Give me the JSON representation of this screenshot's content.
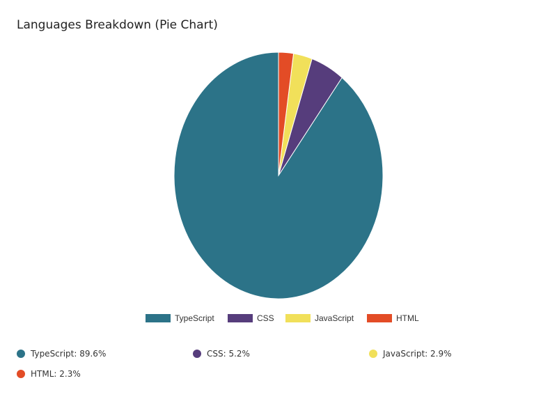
{
  "page": {
    "title": "Languages Breakdown (Pie Chart)"
  },
  "chart_data": {
    "type": "pie",
    "title": "Languages Breakdown (Pie Chart)",
    "legend_position": "bottom",
    "slices": [
      {
        "name": "TypeScript",
        "value": 89.6,
        "color": "#2c7388"
      },
      {
        "name": "CSS",
        "value": 5.2,
        "color": "#563d7c"
      },
      {
        "name": "JavaScript",
        "value": 2.9,
        "color": "#f1e05a"
      },
      {
        "name": "HTML",
        "value": 2.3,
        "color": "#e34c26"
      }
    ]
  },
  "stats": [
    {
      "label": "TypeScript: 89.6%",
      "color": "#2c7388"
    },
    {
      "label": "CSS: 5.2%",
      "color": "#563d7c"
    },
    {
      "label": "JavaScript: 2.9%",
      "color": "#f1e05a"
    },
    {
      "label": "HTML: 2.3%",
      "color": "#e34c26"
    }
  ]
}
